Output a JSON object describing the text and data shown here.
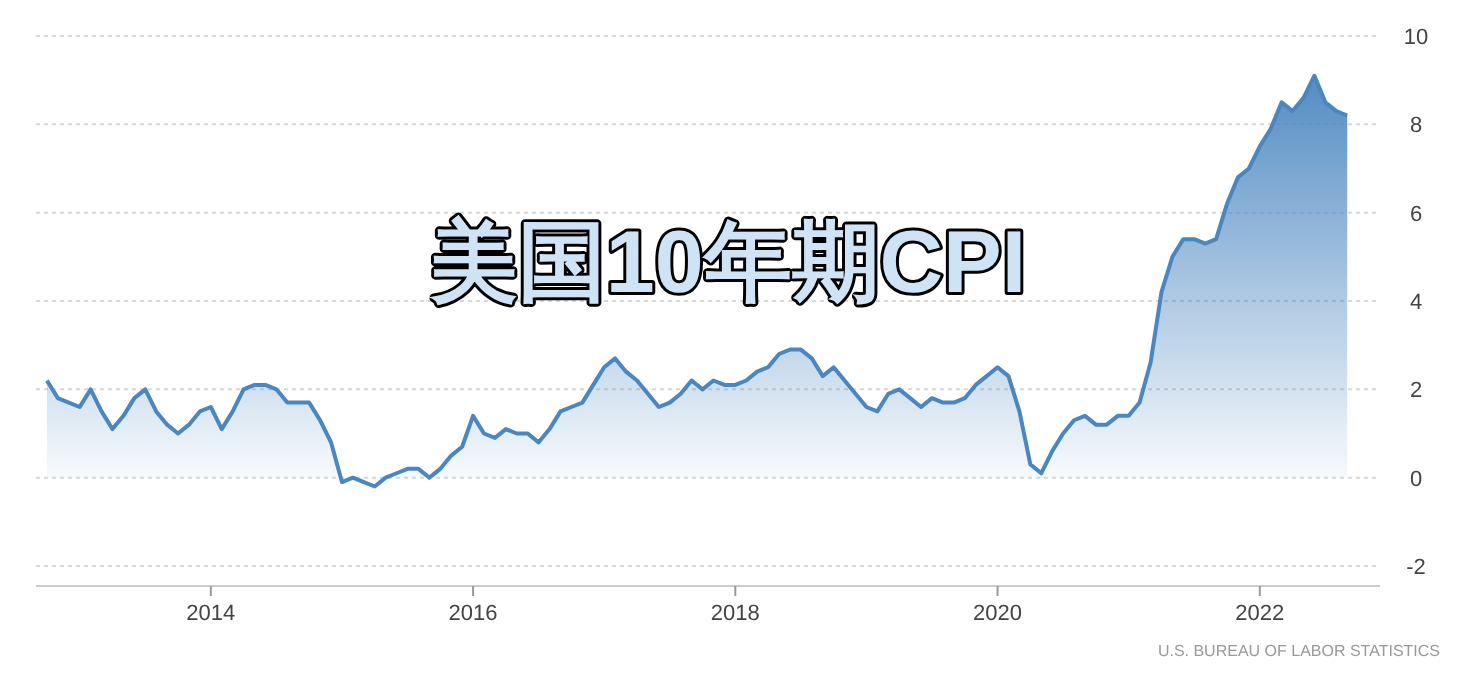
{
  "chart_data": {
    "type": "area",
    "title": "美国10年期CPI",
    "x": [
      "2012-10",
      "2012-11",
      "2012-12",
      "2013-01",
      "2013-02",
      "2013-03",
      "2013-04",
      "2013-05",
      "2013-06",
      "2013-07",
      "2013-08",
      "2013-09",
      "2013-10",
      "2013-11",
      "2013-12",
      "2014-01",
      "2014-02",
      "2014-03",
      "2014-04",
      "2014-05",
      "2014-06",
      "2014-07",
      "2014-08",
      "2014-09",
      "2014-10",
      "2014-11",
      "2014-12",
      "2015-01",
      "2015-02",
      "2015-03",
      "2015-04",
      "2015-05",
      "2015-06",
      "2015-07",
      "2015-08",
      "2015-09",
      "2015-10",
      "2015-11",
      "2015-12",
      "2016-01",
      "2016-02",
      "2016-03",
      "2016-04",
      "2016-05",
      "2016-06",
      "2016-07",
      "2016-08",
      "2016-09",
      "2016-10",
      "2016-11",
      "2016-12",
      "2017-01",
      "2017-02",
      "2017-03",
      "2017-04",
      "2017-05",
      "2017-06",
      "2017-07",
      "2017-08",
      "2017-09",
      "2017-10",
      "2017-11",
      "2017-12",
      "2018-01",
      "2018-02",
      "2018-03",
      "2018-04",
      "2018-05",
      "2018-06",
      "2018-07",
      "2018-08",
      "2018-09",
      "2018-10",
      "2018-11",
      "2018-12",
      "2019-01",
      "2019-02",
      "2019-03",
      "2019-04",
      "2019-05",
      "2019-06",
      "2019-07",
      "2019-08",
      "2019-09",
      "2019-10",
      "2019-11",
      "2019-12",
      "2020-01",
      "2020-02",
      "2020-03",
      "2020-04",
      "2020-05",
      "2020-06",
      "2020-07",
      "2020-08",
      "2020-09",
      "2020-10",
      "2020-11",
      "2020-12",
      "2021-01",
      "2021-02",
      "2021-03",
      "2021-04",
      "2021-05",
      "2021-06",
      "2021-07",
      "2021-08",
      "2021-09",
      "2021-10",
      "2021-11",
      "2021-12",
      "2022-01",
      "2022-02",
      "2022-03",
      "2022-04",
      "2022-05",
      "2022-06",
      "2022-07",
      "2022-08",
      "2022-09"
    ],
    "series": [
      {
        "color": "#4a86c0",
        "values": [
          2.2,
          1.8,
          1.7,
          1.6,
          2.0,
          1.5,
          1.1,
          1.4,
          1.8,
          2.0,
          1.5,
          1.2,
          1.0,
          1.2,
          1.5,
          1.6,
          1.1,
          1.5,
          2.0,
          2.1,
          2.1,
          2.0,
          1.7,
          1.7,
          1.7,
          1.3,
          0.8,
          -0.1,
          0.0,
          -0.1,
          -0.2,
          0.0,
          0.1,
          0.2,
          0.2,
          0.0,
          0.2,
          0.5,
          0.7,
          1.4,
          1.0,
          0.9,
          1.1,
          1.0,
          1.0,
          0.8,
          1.1,
          1.5,
          1.6,
          1.7,
          2.1,
          2.5,
          2.7,
          2.4,
          2.2,
          1.9,
          1.6,
          1.7,
          1.9,
          2.2,
          2.0,
          2.2,
          2.1,
          2.1,
          2.2,
          2.4,
          2.5,
          2.8,
          2.9,
          2.9,
          2.7,
          2.3,
          2.5,
          2.2,
          1.9,
          1.6,
          1.5,
          1.9,
          2.0,
          1.8,
          1.6,
          1.8,
          1.7,
          1.7,
          1.8,
          2.1,
          2.3,
          2.5,
          2.3,
          1.5,
          0.3,
          0.1,
          0.6,
          1.0,
          1.3,
          1.4,
          1.2,
          1.2,
          1.4,
          1.4,
          1.7,
          2.6,
          4.2,
          5.0,
          5.4,
          5.4,
          5.3,
          5.4,
          6.2,
          6.8,
          7.0,
          7.5,
          7.9,
          8.5,
          8.3,
          8.6,
          9.1,
          8.5,
          8.3,
          8.2
        ]
      }
    ],
    "xlim": [
      "2012-09",
      "2022-12"
    ],
    "xticks": [
      {
        "value": "2014-01",
        "label": "2014"
      },
      {
        "value": "2016-01",
        "label": "2016"
      },
      {
        "value": "2018-01",
        "label": "2018"
      },
      {
        "value": "2020-01",
        "label": "2020"
      },
      {
        "value": "2022-01",
        "label": "2022"
      }
    ],
    "ylim": [
      -2,
      10
    ],
    "yticks": [
      -2,
      0,
      2,
      4,
      6,
      8,
      10
    ],
    "grid": "y",
    "annotations": [
      "U.S. BUREAU OF LABOR STATISTICS"
    ]
  }
}
